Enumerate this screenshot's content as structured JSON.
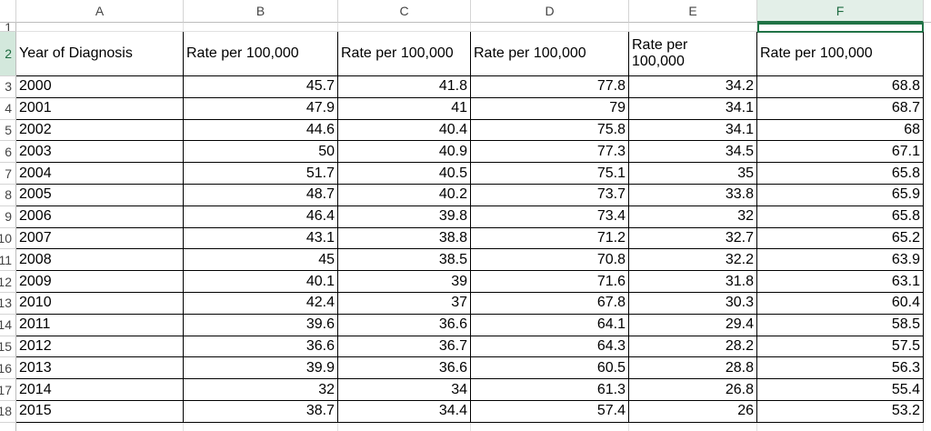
{
  "columns": [
    "A",
    "B",
    "C",
    "D",
    "E",
    "F"
  ],
  "row_numbers": [
    1,
    2,
    3,
    4,
    5,
    6,
    7,
    8,
    9,
    10,
    11,
    12,
    13,
    14,
    15,
    16,
    17,
    18
  ],
  "header": [
    "Year of Diagnosis",
    "Rate per 100,000",
    "Rate per 100,000",
    "Rate per 100,000",
    "Rate per 100,000",
    "Rate per 100,000"
  ],
  "rows": [
    [
      "2000",
      45.7,
      41.8,
      77.8,
      34.2,
      68.8
    ],
    [
      "2001",
      47.9,
      41,
      79,
      34.1,
      68.7
    ],
    [
      "2002",
      44.6,
      40.4,
      75.8,
      34.1,
      68
    ],
    [
      "2003",
      50,
      40.9,
      77.3,
      34.5,
      67.1
    ],
    [
      "2004",
      51.7,
      40.5,
      75.1,
      35,
      65.8
    ],
    [
      "2005",
      48.7,
      40.2,
      73.7,
      33.8,
      65.9
    ],
    [
      "2006",
      46.4,
      39.8,
      73.4,
      32,
      65.8
    ],
    [
      "2007",
      43.1,
      38.8,
      71.2,
      32.7,
      65.2
    ],
    [
      "2008",
      45,
      38.5,
      70.8,
      32.2,
      63.9
    ],
    [
      "2009",
      40.1,
      39,
      71.6,
      31.8,
      63.1
    ],
    [
      "2010",
      42.4,
      37,
      67.8,
      30.3,
      60.4
    ],
    [
      "2011",
      39.6,
      36.6,
      64.1,
      29.4,
      58.5
    ],
    [
      "2012",
      36.6,
      36.7,
      64.3,
      28.2,
      57.5
    ],
    [
      "2013",
      39.9,
      36.6,
      60.5,
      28.8,
      56.3
    ],
    [
      "2014",
      32,
      34,
      61.3,
      26.8,
      55.4
    ],
    [
      "2015",
      38.7,
      34.4,
      57.4,
      26,
      53.2
    ]
  ]
}
